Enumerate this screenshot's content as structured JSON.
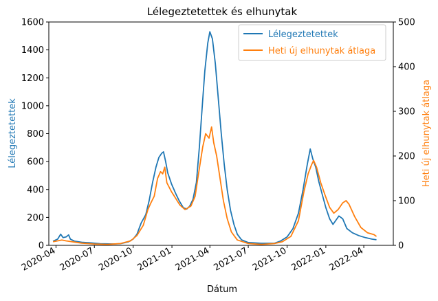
{
  "chart_data": {
    "type": "line",
    "title": "Lélegeztetettek és elhunytak",
    "xlabel": "Dátum",
    "ylabel_left": "Lélegeztetettek",
    "ylabel_right": "Heti új elhunytak átlaga",
    "ylim_left": [
      0,
      1600
    ],
    "ylim_right": [
      0,
      500
    ],
    "xlim": [
      "2020-03-15",
      "2022-06-10"
    ],
    "yticks_left": [
      "0",
      "200",
      "400",
      "600",
      "800",
      "1000",
      "1200",
      "1400",
      "1600"
    ],
    "yticks_right": [
      "0",
      "100",
      "200",
      "300",
      "400",
      "500"
    ],
    "xticks": [
      "2020-04",
      "2020-07",
      "2020-10",
      "2021-01",
      "2021-04",
      "2021-07",
      "2021-10",
      "2022-01",
      "2022-04"
    ],
    "legend": "top-right",
    "grid": false,
    "colors": {
      "left": "#1f77b4",
      "right": "#ff7f0e"
    },
    "series": [
      {
        "name": "Lélegeztetettek",
        "axis": "left",
        "points": [
          [
            "2020-03-25",
            30
          ],
          [
            "2020-04-05",
            45
          ],
          [
            "2020-04-12",
            80
          ],
          [
            "2020-04-18",
            55
          ],
          [
            "2020-04-25",
            60
          ],
          [
            "2020-05-01",
            75
          ],
          [
            "2020-05-05",
            45
          ],
          [
            "2020-05-15",
            30
          ],
          [
            "2020-06-01",
            22
          ],
          [
            "2020-06-20",
            18
          ],
          [
            "2020-07-15",
            12
          ],
          [
            "2020-08-15",
            10
          ],
          [
            "2020-09-01",
            12
          ],
          [
            "2020-09-20",
            25
          ],
          [
            "2020-10-01",
            45
          ],
          [
            "2020-10-10",
            80
          ],
          [
            "2020-10-20",
            160
          ],
          [
            "2020-10-31",
            220
          ],
          [
            "2020-11-08",
            320
          ],
          [
            "2020-11-16",
            450
          ],
          [
            "2020-11-24",
            560
          ],
          [
            "2020-12-01",
            630
          ],
          [
            "2020-12-08",
            660
          ],
          [
            "2020-12-12",
            670
          ],
          [
            "2020-12-17",
            600
          ],
          [
            "2020-12-22",
            520
          ],
          [
            "2020-12-31",
            440
          ],
          [
            "2021-01-10",
            370
          ],
          [
            "2021-01-18",
            320
          ],
          [
            "2021-01-28",
            270
          ],
          [
            "2021-02-05",
            260
          ],
          [
            "2021-02-12",
            280
          ],
          [
            "2021-02-20",
            330
          ],
          [
            "2021-02-28",
            450
          ],
          [
            "2021-03-07",
            700
          ],
          [
            "2021-03-14",
            1000
          ],
          [
            "2021-03-20",
            1250
          ],
          [
            "2021-03-27",
            1450
          ],
          [
            "2021-04-01",
            1530
          ],
          [
            "2021-04-07",
            1480
          ],
          [
            "2021-04-14",
            1300
          ],
          [
            "2021-04-21",
            1050
          ],
          [
            "2021-04-28",
            800
          ],
          [
            "2021-05-05",
            580
          ],
          [
            "2021-05-12",
            400
          ],
          [
            "2021-05-20",
            250
          ],
          [
            "2021-05-28",
            150
          ],
          [
            "2021-06-05",
            80
          ],
          [
            "2021-06-15",
            40
          ],
          [
            "2021-07-01",
            20
          ],
          [
            "2021-08-01",
            15
          ],
          [
            "2021-09-01",
            15
          ],
          [
            "2021-09-15",
            30
          ],
          [
            "2021-10-01",
            60
          ],
          [
            "2021-10-15",
            120
          ],
          [
            "2021-10-28",
            230
          ],
          [
            "2021-11-08",
            400
          ],
          [
            "2021-11-18",
            580
          ],
          [
            "2021-11-25",
            690
          ],
          [
            "2021-12-01",
            620
          ],
          [
            "2021-12-08",
            560
          ],
          [
            "2021-12-15",
            460
          ],
          [
            "2021-12-22",
            380
          ],
          [
            "2022-01-01",
            270
          ],
          [
            "2022-01-10",
            190
          ],
          [
            "2022-01-18",
            150
          ],
          [
            "2022-01-25",
            180
          ],
          [
            "2022-02-01",
            210
          ],
          [
            "2022-02-10",
            190
          ],
          [
            "2022-02-20",
            120
          ],
          [
            "2022-03-05",
            90
          ],
          [
            "2022-03-20",
            70
          ],
          [
            "2022-04-05",
            55
          ],
          [
            "2022-04-20",
            45
          ],
          [
            "2022-05-01",
            40
          ]
        ]
      },
      {
        "name": "Heti új elhunytak átlaga",
        "axis": "right",
        "points": [
          [
            "2020-03-25",
            8
          ],
          [
            "2020-04-05",
            10
          ],
          [
            "2020-04-15",
            12
          ],
          [
            "2020-04-25",
            10
          ],
          [
            "2020-05-10",
            8
          ],
          [
            "2020-06-01",
            5
          ],
          [
            "2020-07-01",
            3
          ],
          [
            "2020-08-01",
            2
          ],
          [
            "2020-09-01",
            4
          ],
          [
            "2020-09-25",
            10
          ],
          [
            "2020-10-10",
            22
          ],
          [
            "2020-10-25",
            45
          ],
          [
            "2020-11-05",
            80
          ],
          [
            "2020-11-12",
            95
          ],
          [
            "2020-11-20",
            110
          ],
          [
            "2020-11-28",
            150
          ],
          [
            "2020-12-05",
            165
          ],
          [
            "2020-12-10",
            160
          ],
          [
            "2020-12-15",
            175
          ],
          [
            "2020-12-20",
            140
          ],
          [
            "2020-12-31",
            120
          ],
          [
            "2021-01-10",
            105
          ],
          [
            "2021-01-20",
            90
          ],
          [
            "2021-02-01",
            80
          ],
          [
            "2021-02-15",
            88
          ],
          [
            "2021-02-25",
            110
          ],
          [
            "2021-03-05",
            160
          ],
          [
            "2021-03-15",
            220
          ],
          [
            "2021-03-22",
            250
          ],
          [
            "2021-03-30",
            240
          ],
          [
            "2021-04-05",
            265
          ],
          [
            "2021-04-10",
            230
          ],
          [
            "2021-04-17",
            200
          ],
          [
            "2021-04-25",
            150
          ],
          [
            "2021-05-03",
            100
          ],
          [
            "2021-05-12",
            60
          ],
          [
            "2021-05-22",
            30
          ],
          [
            "2021-06-05",
            12
          ],
          [
            "2021-07-01",
            4
          ],
          [
            "2021-08-01",
            2
          ],
          [
            "2021-09-01",
            4
          ],
          [
            "2021-09-20",
            8
          ],
          [
            "2021-10-10",
            20
          ],
          [
            "2021-10-28",
            55
          ],
          [
            "2021-11-10",
            120
          ],
          [
            "2021-11-20",
            160
          ],
          [
            "2021-11-28",
            180
          ],
          [
            "2021-12-03",
            190
          ],
          [
            "2021-12-10",
            175
          ],
          [
            "2021-12-20",
            140
          ],
          [
            "2021-12-31",
            110
          ],
          [
            "2022-01-10",
            85
          ],
          [
            "2022-01-20",
            72
          ],
          [
            "2022-01-30",
            80
          ],
          [
            "2022-02-10",
            95
          ],
          [
            "2022-02-18",
            100
          ],
          [
            "2022-02-25",
            92
          ],
          [
            "2022-03-10",
            65
          ],
          [
            "2022-03-25",
            40
          ],
          [
            "2022-04-10",
            28
          ],
          [
            "2022-04-25",
            24
          ],
          [
            "2022-05-01",
            20
          ]
        ]
      }
    ]
  }
}
